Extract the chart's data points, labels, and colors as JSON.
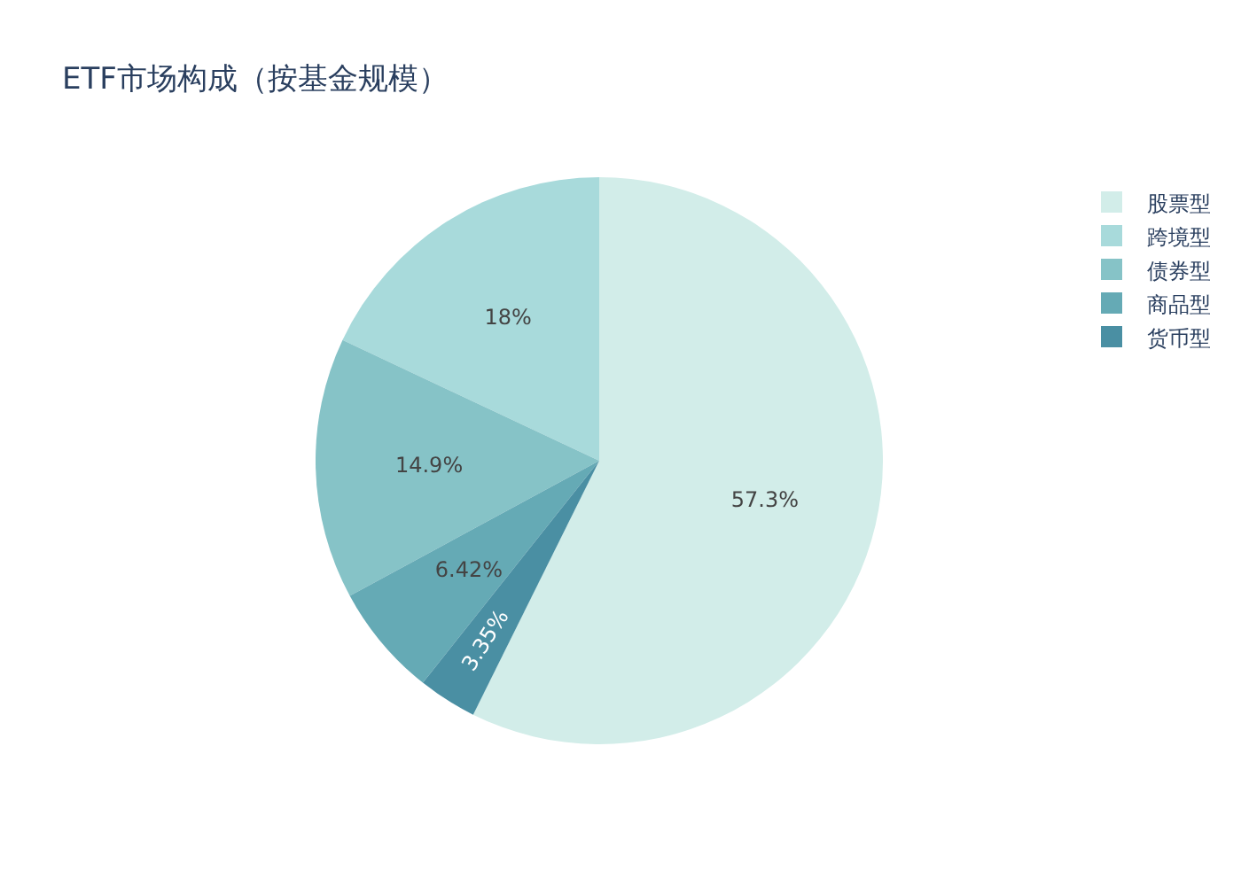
{
  "chart_data": {
    "type": "pie",
    "title": "ETF市场构成（按基金规模）",
    "categories": [
      "股票型",
      "跨境型",
      "债券型",
      "商品型",
      "货币型"
    ],
    "values": [
      57.33,
      18,
      14.9,
      6.42,
      3.35
    ],
    "value_labels": [
      "57.3%",
      "18%",
      "14.9%",
      "6.42%",
      "3.35%"
    ],
    "colors": [
      "#d2ede9",
      "#a8dadb",
      "#86c3c7",
      "#65aab5",
      "#4a8fa3"
    ],
    "legend": "top right"
  }
}
